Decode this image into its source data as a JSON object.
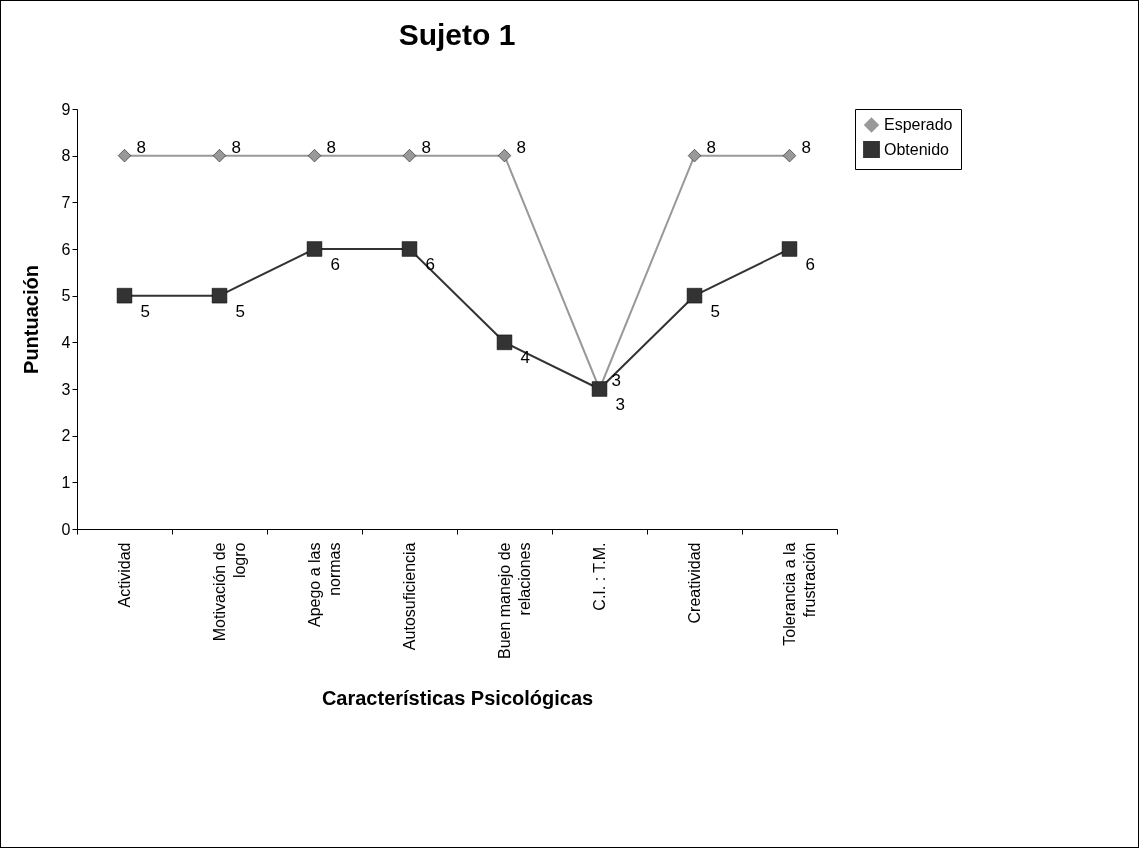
{
  "chart_data": {
    "type": "line",
    "title": "Sujeto 1",
    "xlabel": "Características Psicológicas",
    "ylabel": "Puntuación",
    "categories": [
      "Actividad",
      "Motivación de logro",
      "Apego a las normas",
      "Autosuficiencia",
      "Buen manejo de relaciones",
      "C.I. : T.M.",
      "Creatividad",
      "Tolerancia a la frustración"
    ],
    "series": [
      {
        "name": "Esperado",
        "color": "#999999",
        "marker": "diamond",
        "values": [
          8,
          8,
          8,
          8,
          8,
          3,
          8,
          8
        ]
      },
      {
        "name": "Obtenido",
        "color": "#333333",
        "marker": "square",
        "values": [
          5,
          5,
          6,
          6,
          4,
          3,
          5,
          6
        ]
      }
    ],
    "ylim": [
      0,
      9
    ],
    "yticks": [
      0,
      1,
      2,
      3,
      4,
      5,
      6,
      7,
      8,
      9
    ],
    "grid": false,
    "legend": "right",
    "data_labels": true
  }
}
